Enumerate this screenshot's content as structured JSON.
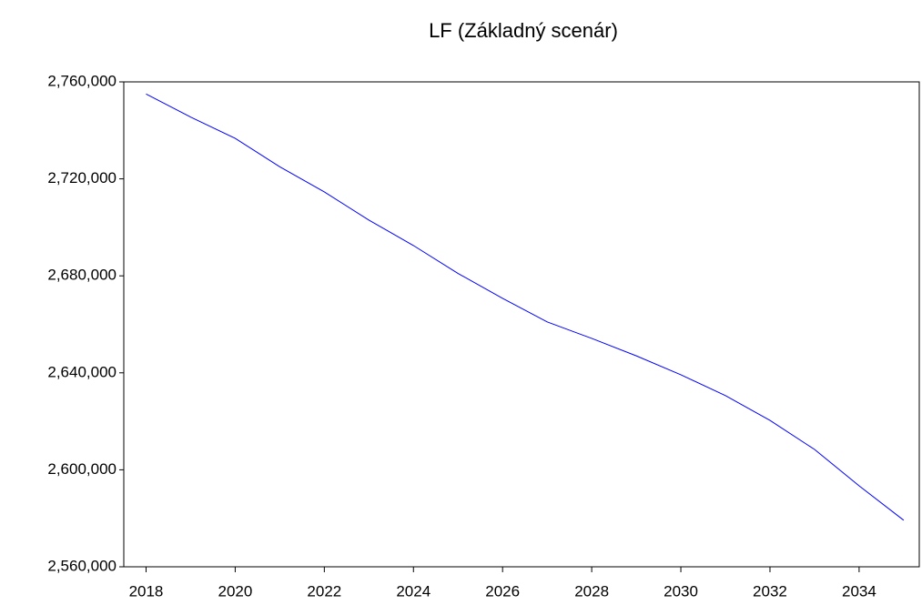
{
  "chart_data": {
    "type": "line",
    "title": "LF (Základný scenár)",
    "x": [
      2018,
      2019,
      2020,
      2021,
      2022,
      2023,
      2024,
      2025,
      2026,
      2027,
      2028,
      2029,
      2030,
      2031,
      2032,
      2033,
      2034,
      2035
    ],
    "series": [
      {
        "name": "LF",
        "color": "#0000ff",
        "values": [
          2755000,
          2745500,
          2736700,
          2725000,
          2714600,
          2703000,
          2692500,
          2681000,
          2670700,
          2661000,
          2654200,
          2647000,
          2639200,
          2630600,
          2620400,
          2608400,
          2593400,
          2579200
        ]
      }
    ],
    "xlim": [
      2017.5,
      2035.35
    ],
    "xticks": [
      2018,
      2020,
      2022,
      2024,
      2026,
      2028,
      2030,
      2032,
      2034
    ],
    "ylim": [
      2560000,
      2760000
    ],
    "yticks": [
      {
        "value": 2560000,
        "label": "2,560,000"
      },
      {
        "value": 2600000,
        "label": "2,600,000"
      },
      {
        "value": 2640000,
        "label": "2,640,000"
      },
      {
        "value": 2680000,
        "label": "2,680,000"
      },
      {
        "value": 2720000,
        "label": "2,720,000"
      },
      {
        "value": 2760000,
        "label": "2,760,000"
      }
    ],
    "grid": false
  }
}
